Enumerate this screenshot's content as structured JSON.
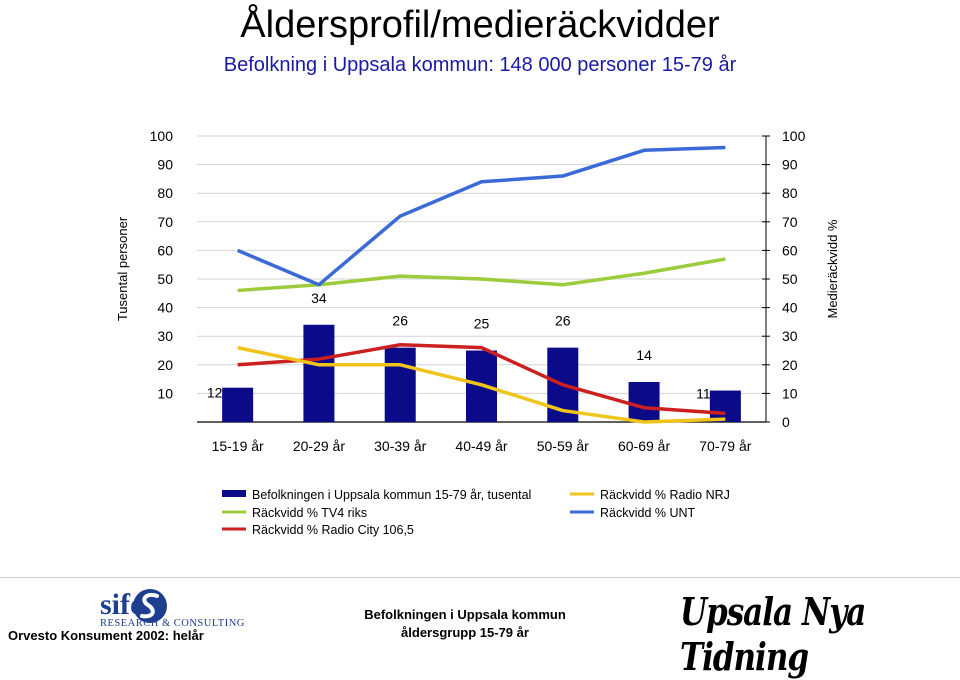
{
  "header": {
    "title": "Åldersprofil/medieräckvidder",
    "subtitle": "Befolkning i Uppsala kommun: 148 000 personer 15-79 år"
  },
  "chart_data": {
    "type": "bar",
    "categories": [
      "15-19 år",
      "20-29 år",
      "30-39 år",
      "40-49 år",
      "50-59 år",
      "60-69 år",
      "70-79 år"
    ],
    "ylabel_left": "Tusental personer",
    "ylabel_right": "Medieräckvidd %",
    "ylim": [
      0,
      100
    ],
    "yticks_left": [
      10,
      20,
      30,
      40,
      50,
      60,
      70,
      80,
      90,
      100
    ],
    "yticks_right": [
      0,
      10,
      20,
      30,
      40,
      50,
      60,
      70,
      80,
      90,
      100
    ],
    "grid": true,
    "legend_placement": "bottom",
    "bar_series": {
      "name": "Befolkningen i Uppsala kommun 15-79 år, tusental",
      "values": [
        12,
        34,
        26,
        25,
        26,
        14,
        11
      ],
      "color": "#0b0b8a"
    },
    "line_series": [
      {
        "name": "Räckvidd % TV4 riks",
        "values": [
          46,
          48,
          51,
          50,
          48,
          52,
          57
        ],
        "color": "#9ccb3b"
      },
      {
        "name": "Räckvidd % Radio City 106,5",
        "values": [
          20,
          22,
          27,
          26,
          13,
          5,
          3
        ],
        "color": "#cc1f1f"
      },
      {
        "name": "Räckvidd % Radio NRJ",
        "values": [
          26,
          20,
          20,
          13,
          4,
          0,
          1
        ],
        "color": "#f0c419"
      },
      {
        "name": "Räckvidd % UNT",
        "values": [
          60,
          48,
          72,
          84,
          86,
          95,
          96
        ],
        "color": "#3a6ad8"
      }
    ]
  },
  "legend": {
    "items": [
      "Befolkningen i Uppsala kommun 15-79 år, tusental",
      "Räckvidd % Radio NRJ",
      "Räckvidd % TV4 riks",
      "Räckvidd % UNT",
      "Räckvidd % Radio City 106,5"
    ]
  },
  "footer": {
    "brand_name": "sifo",
    "brand_sub": "RESEARCH & CONSULTING",
    "source": "Orvesto Konsument 2002: helår",
    "center_line1": "Befolkningen i Uppsala kommun",
    "center_line2": "åldersgrupp 15-79 år",
    "newspaper_logo": "Upsala Nya Tidning"
  }
}
